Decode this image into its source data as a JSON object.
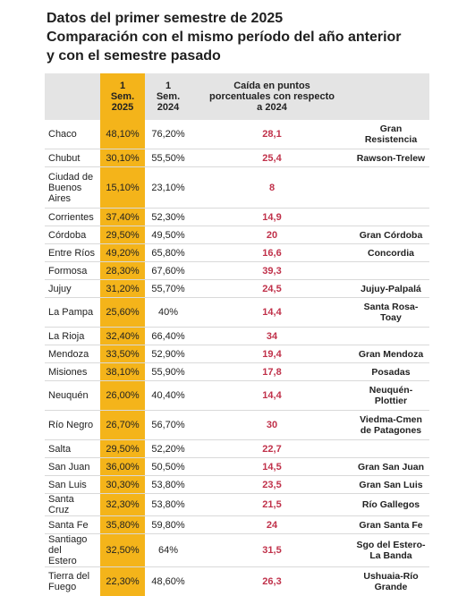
{
  "title": {
    "line1": "Datos del primer semestre de 2025",
    "line2": "Comparación con el mismo período del año anterior",
    "line3": "y con el semestre pasado"
  },
  "table": {
    "headers": {
      "col1": "",
      "col2": "1\nSem.\n2025",
      "col3": "1\nSem.\n2024",
      "col4": "Caída en puntos\nporcentuales con respecto\na 2024",
      "col5": ""
    },
    "rows": [
      {
        "province": "Chaco",
        "sem2025": "48,10%",
        "sem2024": "76,20%",
        "drop": "28,1",
        "city": "Gran\nResistencia",
        "size": "tall"
      },
      {
        "province": "Chubut",
        "sem2025": "30,10%",
        "sem2024": "55,50%",
        "drop": "25,4",
        "city": "Rawson-Trelew",
        "size": "std"
      },
      {
        "province": "Ciudad de\nBuenos\nAires",
        "sem2025": "15,10%",
        "sem2024": "23,10%",
        "drop": "8",
        "city": "",
        "size": "xtall"
      },
      {
        "province": "Corrientes",
        "sem2025": "37,40%",
        "sem2024": "52,30%",
        "drop": "14,9",
        "city": "",
        "size": "std"
      },
      {
        "province": "Córdoba",
        "sem2025": "29,50%",
        "sem2024": "49,50%",
        "drop": "20",
        "city": "Gran Córdoba",
        "size": "std"
      },
      {
        "province": "Entre Ríos",
        "sem2025": "49,20%",
        "sem2024": "65,80%",
        "drop": "16,6",
        "city": "Concordia",
        "size": "std"
      },
      {
        "province": "Formosa",
        "sem2025": "28,30%",
        "sem2024": "67,60%",
        "drop": "39,3",
        "city": "",
        "size": "std"
      },
      {
        "province": "Jujuy",
        "sem2025": "31,20%",
        "sem2024": "55,70%",
        "drop": "24,5",
        "city": "Jujuy-Palpalá",
        "size": "std"
      },
      {
        "province": "La Pampa",
        "sem2025": "25,60%",
        "sem2024": "40%",
        "drop": "14,4",
        "city": "Santa Rosa-\nToay",
        "size": "tall"
      },
      {
        "province": "La Rioja",
        "sem2025": "32,40%",
        "sem2024": "66,40%",
        "drop": "34",
        "city": "",
        "size": "std"
      },
      {
        "province": "Mendoza",
        "sem2025": "33,50%",
        "sem2024": "52,90%",
        "drop": "19,4",
        "city": "Gran Mendoza",
        "size": "std"
      },
      {
        "province": "Misiones",
        "sem2025": "38,10%",
        "sem2024": "55,90%",
        "drop": "17,8",
        "city": "Posadas",
        "size": "std"
      },
      {
        "province": "Neuquén",
        "sem2025": "26,00%",
        "sem2024": "40,40%",
        "drop": "14,4",
        "city": "Neuquén-\nPlottier",
        "size": "tall"
      },
      {
        "province": "Río Negro",
        "sem2025": "26,70%",
        "sem2024": "56,70%",
        "drop": "30",
        "city": "Viedma-Cmen\nde Patagones",
        "size": "tall"
      },
      {
        "province": "Salta",
        "sem2025": "29,50%",
        "sem2024": "52,20%",
        "drop": "22,7",
        "city": "",
        "size": "std"
      },
      {
        "province": "San Juan",
        "sem2025": "36,00%",
        "sem2024": "50,50%",
        "drop": "14,5",
        "city": "Gran San Juan",
        "size": "std"
      },
      {
        "province": "San Luis",
        "sem2025": "30,30%",
        "sem2024": "53,80%",
        "drop": "23,5",
        "city": "Gran San Luis",
        "size": "std"
      },
      {
        "province": "Santa Cruz",
        "sem2025": "32,30%",
        "sem2024": "53,80%",
        "drop": "21,5",
        "city": "Río Gallegos",
        "size": "std"
      },
      {
        "province": "Santa Fe",
        "sem2025": "35,80%",
        "sem2024": "59,80%",
        "drop": "24",
        "city": "Gran Santa Fe",
        "size": "std"
      },
      {
        "province": "Santiago del\nEstero",
        "sem2025": "32,50%",
        "sem2024": "64%",
        "drop": "31,5",
        "city": "Sgo del Estero-\nLa Banda",
        "size": "tall"
      },
      {
        "province": "Tierra del\nFuego",
        "sem2025": "22,30%",
        "sem2024": "48,60%",
        "drop": "26,3",
        "city": "Ushuaia-Río\nGrande",
        "size": "tall"
      }
    ]
  },
  "colors": {
    "highlight": "#f4b41a",
    "header_bg": "#e4e4e4",
    "drop_text": "#c0314a"
  }
}
